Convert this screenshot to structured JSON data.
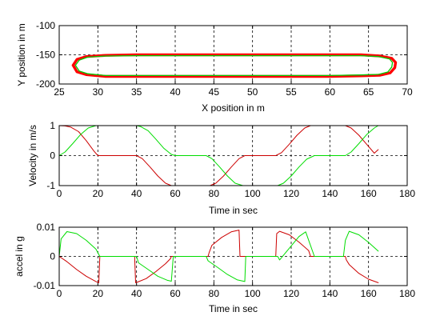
{
  "chart_data": [
    {
      "type": "line",
      "xlabel": "X position in m",
      "ylabel": "Y position in m",
      "xlim": [
        25,
        70
      ],
      "ylim": [
        -200,
        -100
      ],
      "xticks": [
        25,
        30,
        35,
        40,
        45,
        50,
        55,
        60,
        65,
        70
      ],
      "yticks": [
        -100,
        -150,
        -200
      ],
      "grid": true,
      "series": [
        {
          "color": "#ff0000",
          "x": [
            26.8,
            27.3,
            28.5,
            31,
            35,
            40,
            45,
            50,
            55,
            60,
            64,
            66.5,
            68,
            68.5,
            68.4,
            67.8,
            66.5,
            64,
            60,
            55,
            50,
            45,
            40,
            35,
            31,
            28.5,
            27.3,
            26.8
          ],
          "y": [
            -168,
            -158,
            -153,
            -151,
            -150,
            -150,
            -150,
            -150,
            -150,
            -150,
            -150,
            -152,
            -156,
            -163,
            -172,
            -181,
            -185,
            -186,
            -187,
            -187,
            -187,
            -187,
            -187,
            -187,
            -187,
            -184,
            -179,
            -168
          ]
        },
        {
          "color": "#00cc00",
          "x": [
            27.1,
            27.6,
            28.7,
            31,
            35,
            40,
            45,
            50,
            55,
            60,
            64,
            66.3,
            67.7,
            68.1,
            68,
            67.5,
            66.3,
            64,
            60,
            55,
            50,
            45,
            40,
            35,
            31,
            28.7,
            27.6,
            27.1
          ],
          "y": [
            -168,
            -159,
            -154,
            -152,
            -151.5,
            -151.5,
            -151.5,
            -151.5,
            -151.5,
            -151.5,
            -151.5,
            -153,
            -157,
            -163,
            -171,
            -179.5,
            -183.5,
            -184.5,
            -185.5,
            -185.5,
            -185.5,
            -185.5,
            -185.5,
            -185.5,
            -185.5,
            -182.5,
            -178,
            -168
          ]
        }
      ]
    },
    {
      "type": "line",
      "xlabel": "Time in sec",
      "ylabel": "Velocity in m/s",
      "xlim": [
        0,
        180
      ],
      "ylim": [
        -1,
        1
      ],
      "xticks": [
        0,
        20,
        40,
        60,
        80,
        100,
        120,
        140,
        160,
        180
      ],
      "yticks": [
        1,
        0,
        -1
      ],
      "grid": true,
      "series": [
        {
          "color": "#cc0000",
          "x": [
            0,
            3,
            6,
            10,
            14,
            18,
            20,
            30,
            40,
            43,
            47,
            51,
            55,
            58,
            78,
            81,
            85,
            89,
            93,
            96,
            112,
            115,
            119,
            123,
            127,
            130,
            148,
            151,
            155,
            159,
            163,
            165
          ],
          "y": [
            1,
            0.99,
            0.95,
            0.8,
            0.5,
            0.15,
            0,
            0,
            0,
            -0.1,
            -0.38,
            -0.68,
            -0.92,
            -1,
            -1,
            -0.92,
            -0.68,
            -0.38,
            -0.1,
            0,
            0,
            0.1,
            0.38,
            0.68,
            0.92,
            1,
            1,
            0.92,
            0.68,
            0.38,
            0.08,
            0.2
          ]
        },
        {
          "color": "#00dd00",
          "x": [
            0,
            3,
            7,
            11,
            15,
            19,
            21,
            40,
            42,
            46,
            50,
            54,
            58,
            60,
            76,
            79,
            83,
            87,
            91,
            95,
            97,
            113,
            116,
            120,
            124,
            128,
            132,
            134,
            148,
            151,
            155,
            159,
            163,
            165
          ],
          "y": [
            0,
            0.12,
            0.4,
            0.7,
            0.92,
            1,
            1,
            1,
            0.97,
            0.83,
            0.55,
            0.25,
            0.04,
            0,
            0,
            -0.1,
            -0.38,
            -0.68,
            -0.92,
            -1,
            -1,
            -1,
            -0.92,
            -0.68,
            -0.38,
            -0.12,
            0,
            0,
            0,
            0.12,
            0.4,
            0.7,
            0.92,
            1
          ]
        }
      ]
    },
    {
      "type": "line",
      "xlabel": "Time in sec",
      "ylabel": "accel in g",
      "xlim": [
        0,
        180
      ],
      "ylim": [
        -0.01,
        0.01
      ],
      "xticks": [
        0,
        20,
        40,
        60,
        80,
        100,
        120,
        140,
        160,
        180
      ],
      "ytick_values": [
        0.01,
        0,
        -0.01
      ],
      "ytick_labels": [
        "0.01",
        "0",
        "-0.01"
      ],
      "grid": true,
      "series": [
        {
          "color": "#cc0000",
          "x": [
            0,
            4,
            9,
            14,
            19,
            20.5,
            21,
            39,
            39.5,
            40.5,
            45,
            50,
            55,
            57.5,
            58,
            77,
            77.5,
            79,
            84,
            89,
            93,
            93.5,
            112,
            112.5,
            114,
            119,
            124,
            129,
            130,
            148,
            148.5,
            150,
            155,
            160,
            165
          ],
          "y": [
            0,
            -0.0018,
            -0.0045,
            -0.0068,
            -0.0086,
            -0.009,
            0,
            0,
            -0.009,
            -0.0088,
            -0.0076,
            -0.0052,
            -0.0025,
            -0.0008,
            0,
            0,
            0.0012,
            0.0038,
            0.0065,
            0.0084,
            0.009,
            0,
            0,
            0.0078,
            0.0086,
            0.0074,
            0.0049,
            0.002,
            0,
            0,
            -0.0012,
            -0.0028,
            -0.0058,
            -0.0078,
            -0.009
          ]
        },
        {
          "color": "#00dd00",
          "x": [
            0,
            1,
            4,
            9,
            14,
            19,
            21,
            40,
            41,
            46,
            51,
            56,
            58,
            59,
            76,
            77,
            82,
            87,
            92,
            96,
            96.5,
            113,
            114,
            119,
            124,
            127.5,
            132,
            147,
            148,
            150,
            155,
            160,
            165
          ],
          "y": [
            0,
            0.006,
            0.0085,
            0.0078,
            0.0055,
            0.0025,
            0,
            0,
            -0.0022,
            -0.0045,
            -0.0068,
            -0.0082,
            -0.0085,
            0,
            0,
            -0.0015,
            -0.0038,
            -0.0062,
            -0.008,
            -0.0086,
            0,
            0,
            -0.0012,
            0.0028,
            0.0068,
            0.0084,
            0,
            0,
            0.0055,
            0.0086,
            0.0074,
            0.0048,
            0.0018
          ]
        }
      ]
    }
  ]
}
